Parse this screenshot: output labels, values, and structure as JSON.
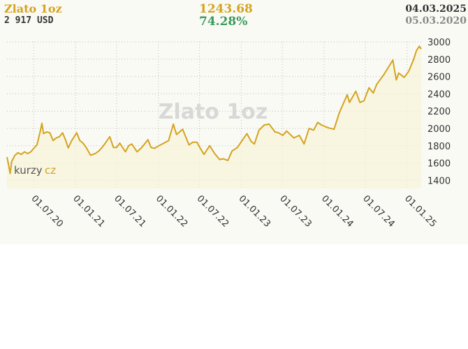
{
  "header": {
    "title": "Zlato 1oz",
    "price": "2 917 USD",
    "change_value": "1243.68",
    "change_percent": "74.28%",
    "date_end": "04.03.2025",
    "date_start": "05.03.2020"
  },
  "logo": {
    "part1": "kurzy",
    "part2": "cz"
  },
  "colors": {
    "line": "#d4a320",
    "fill": "#f7f3d8",
    "grid": "#bbbbbb",
    "change_positive": "#3a9a5a",
    "background": "#fafaf5"
  },
  "chart_data": {
    "type": "line",
    "title": "Zlato 1oz",
    "watermark": "Zlato 1oz",
    "xlabel": "",
    "ylabel": "",
    "x_range": [
      "2020-03-05",
      "2025-03-04"
    ],
    "ylim": [
      1400,
      3000
    ],
    "yticks": [
      1400,
      1600,
      1800,
      2000,
      2200,
      2400,
      2600,
      2800,
      3000
    ],
    "xticks": [
      {
        "date": "2020-07-01",
        "label": "01.07.20"
      },
      {
        "date": "2021-01-01",
        "label": "01.01.21"
      },
      {
        "date": "2021-07-01",
        "label": "01.07.21"
      },
      {
        "date": "2022-01-01",
        "label": "01.01.22"
      },
      {
        "date": "2022-07-01",
        "label": "01.07.22"
      },
      {
        "date": "2023-01-01",
        "label": "01.01.23"
      },
      {
        "date": "2023-07-01",
        "label": "01.07.23"
      },
      {
        "date": "2024-01-01",
        "label": "01.01.24"
      },
      {
        "date": "2024-07-01",
        "label": "01.07.24"
      },
      {
        "date": "2025-01-01",
        "label": "01.01.25"
      }
    ],
    "grid": true,
    "legend": "none",
    "series": [
      {
        "points": [
          [
            "2020-03-05",
            1670
          ],
          [
            "2020-03-12",
            1580
          ],
          [
            "2020-03-19",
            1480
          ],
          [
            "2020-03-26",
            1620
          ],
          [
            "2020-04-09",
            1690
          ],
          [
            "2020-04-23",
            1720
          ],
          [
            "2020-05-07",
            1700
          ],
          [
            "2020-05-21",
            1730
          ],
          [
            "2020-06-04",
            1710
          ],
          [
            "2020-06-18",
            1730
          ],
          [
            "2020-07-01",
            1770
          ],
          [
            "2020-07-15",
            1810
          ],
          [
            "2020-07-29",
            1960
          ],
          [
            "2020-08-06",
            2060
          ],
          [
            "2020-08-13",
            1940
          ],
          [
            "2020-08-27",
            1960
          ],
          [
            "2020-09-10",
            1950
          ],
          [
            "2020-09-24",
            1860
          ],
          [
            "2020-10-08",
            1890
          ],
          [
            "2020-10-22",
            1905
          ],
          [
            "2020-11-05",
            1950
          ],
          [
            "2020-11-19",
            1860
          ],
          [
            "2020-11-30",
            1775
          ],
          [
            "2020-12-15",
            1860
          ],
          [
            "2021-01-06",
            1950
          ],
          [
            "2021-01-20",
            1860
          ],
          [
            "2021-02-03",
            1830
          ],
          [
            "2021-02-17",
            1780
          ],
          [
            "2021-03-08",
            1690
          ],
          [
            "2021-03-29",
            1710
          ],
          [
            "2021-04-14",
            1740
          ],
          [
            "2021-04-28",
            1780
          ],
          [
            "2021-05-12",
            1830
          ],
          [
            "2021-06-01",
            1905
          ],
          [
            "2021-06-17",
            1780
          ],
          [
            "2021-07-01",
            1780
          ],
          [
            "2021-07-15",
            1830
          ],
          [
            "2021-08-09",
            1730
          ],
          [
            "2021-08-23",
            1800
          ],
          [
            "2021-09-06",
            1820
          ],
          [
            "2021-09-29",
            1730
          ],
          [
            "2021-10-20",
            1780
          ],
          [
            "2021-11-16",
            1870
          ],
          [
            "2021-11-30",
            1780
          ],
          [
            "2021-12-15",
            1770
          ],
          [
            "2022-01-03",
            1800
          ],
          [
            "2022-01-25",
            1830
          ],
          [
            "2022-02-15",
            1860
          ],
          [
            "2022-03-08",
            2050
          ],
          [
            "2022-03-22",
            1930
          ],
          [
            "2022-04-18",
            1990
          ],
          [
            "2022-05-16",
            1810
          ],
          [
            "2022-06-01",
            1840
          ],
          [
            "2022-06-20",
            1840
          ],
          [
            "2022-07-05",
            1770
          ],
          [
            "2022-07-21",
            1700
          ],
          [
            "2022-08-15",
            1800
          ],
          [
            "2022-09-06",
            1710
          ],
          [
            "2022-09-28",
            1640
          ],
          [
            "2022-10-14",
            1650
          ],
          [
            "2022-11-03",
            1630
          ],
          [
            "2022-11-22",
            1740
          ],
          [
            "2022-12-15",
            1780
          ],
          [
            "2023-01-10",
            1880
          ],
          [
            "2023-01-26",
            1940
          ],
          [
            "2023-02-14",
            1850
          ],
          [
            "2023-02-28",
            1820
          ],
          [
            "2023-03-20",
            1980
          ],
          [
            "2023-04-13",
            2040
          ],
          [
            "2023-05-04",
            2050
          ],
          [
            "2023-05-30",
            1960
          ],
          [
            "2023-06-14",
            1950
          ],
          [
            "2023-07-03",
            1920
          ],
          [
            "2023-07-20",
            1970
          ],
          [
            "2023-08-21",
            1890
          ],
          [
            "2023-09-14",
            1920
          ],
          [
            "2023-10-05",
            1820
          ],
          [
            "2023-10-27",
            2000
          ],
          [
            "2023-11-16",
            1980
          ],
          [
            "2023-12-04",
            2070
          ],
          [
            "2023-12-20",
            2040
          ],
          [
            "2024-01-17",
            2010
          ],
          [
            "2024-02-14",
            1990
          ],
          [
            "2024-03-08",
            2180
          ],
          [
            "2024-04-12",
            2390
          ],
          [
            "2024-04-22",
            2300
          ],
          [
            "2024-05-20",
            2430
          ],
          [
            "2024-06-07",
            2300
          ],
          [
            "2024-06-25",
            2320
          ],
          [
            "2024-07-17",
            2470
          ],
          [
            "2024-08-05",
            2410
          ],
          [
            "2024-08-20",
            2510
          ],
          [
            "2024-09-20",
            2620
          ],
          [
            "2024-10-30",
            2790
          ],
          [
            "2024-11-14",
            2560
          ],
          [
            "2024-11-25",
            2640
          ],
          [
            "2024-12-19",
            2590
          ],
          [
            "2025-01-08",
            2660
          ],
          [
            "2025-01-30",
            2800
          ],
          [
            "2025-02-11",
            2900
          ],
          [
            "2025-02-24",
            2950
          ],
          [
            "2025-03-04",
            2917
          ]
        ]
      }
    ]
  }
}
